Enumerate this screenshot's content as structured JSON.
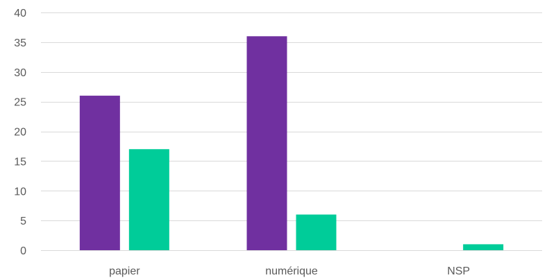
{
  "chart_data": {
    "type": "bar",
    "title": "",
    "xlabel": "",
    "ylabel": "",
    "categories": [
      "papier",
      "numérique",
      "NSP"
    ],
    "series": [
      {
        "values": [
          26,
          36,
          0
        ],
        "color": "#7030a0"
      },
      {
        "values": [
          17,
          6,
          1
        ],
        "color": "#00cc99"
      }
    ],
    "ylim": [
      0,
      40
    ],
    "yticks": [
      0,
      5,
      10,
      15,
      20,
      25,
      30,
      35,
      40
    ],
    "grid": true,
    "legend": "none"
  }
}
